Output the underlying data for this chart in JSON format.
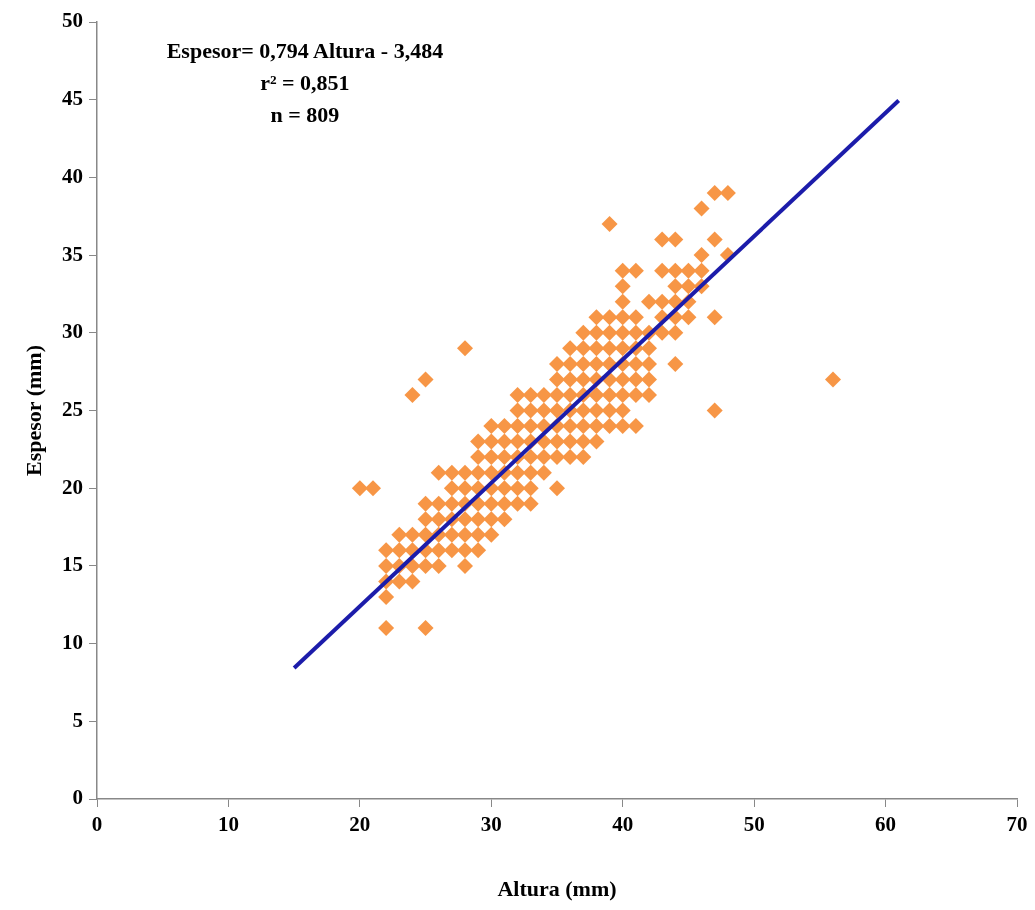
{
  "chart_data": {
    "type": "scatter",
    "xlabel": "Altura (mm)",
    "ylabel": "Espesor (mm)",
    "annotations": [
      "Espesor= 0,794 Altura - 3,484",
      "r² = 0,851",
      "n = 809"
    ],
    "xlim": [
      0,
      70
    ],
    "xticks": [
      0,
      10,
      20,
      30,
      40,
      50,
      60,
      70
    ],
    "ylim": [
      0,
      50
    ],
    "yticks": [
      0,
      5,
      10,
      15,
      20,
      25,
      30,
      35,
      40,
      45,
      50
    ],
    "grid": false,
    "legend": false,
    "marker": "diamond",
    "series": [
      {
        "color": "#f79646",
        "x": [
          20,
          21,
          22,
          22,
          22,
          22,
          22,
          23,
          23,
          23,
          23,
          24,
          24,
          24,
          24,
          24,
          25,
          25,
          25,
          25,
          25,
          25,
          25,
          26,
          26,
          26,
          26,
          26,
          26,
          27,
          27,
          27,
          27,
          27,
          27,
          28,
          28,
          28,
          28,
          28,
          28,
          28,
          28,
          29,
          29,
          29,
          29,
          29,
          29,
          29,
          29,
          30,
          30,
          30,
          30,
          30,
          30,
          30,
          30,
          31,
          31,
          31,
          31,
          31,
          31,
          31,
          32,
          32,
          32,
          32,
          32,
          32,
          32,
          32,
          33,
          33,
          33,
          33,
          33,
          33,
          33,
          33,
          34,
          34,
          34,
          34,
          34,
          34,
          35,
          35,
          35,
          35,
          35,
          35,
          35,
          35,
          36,
          36,
          36,
          36,
          36,
          36,
          36,
          36,
          37,
          37,
          37,
          37,
          37,
          37,
          37,
          37,
          37,
          38,
          38,
          38,
          38,
          38,
          38,
          38,
          38,
          38,
          39,
          39,
          39,
          39,
          39,
          39,
          39,
          39,
          39,
          40,
          40,
          40,
          40,
          40,
          40,
          40,
          40,
          40,
          40,
          40,
          41,
          41,
          41,
          41,
          41,
          41,
          41,
          41,
          42,
          42,
          42,
          42,
          42,
          42,
          43,
          43,
          43,
          43,
          43,
          44,
          44,
          44,
          44,
          44,
          44,
          44,
          45,
          45,
          45,
          45,
          46,
          46,
          46,
          46,
          47,
          47,
          47,
          47,
          48,
          48,
          56
        ],
        "values": [
          20,
          20,
          11,
          13,
          14,
          15,
          16,
          14,
          15,
          16,
          17,
          14,
          15,
          16,
          17,
          26,
          11,
          15,
          16,
          17,
          18,
          19,
          27,
          15,
          16,
          17,
          18,
          19,
          21,
          16,
          17,
          18,
          19,
          20,
          21,
          15,
          16,
          17,
          18,
          19,
          20,
          21,
          29,
          16,
          17,
          18,
          19,
          20,
          21,
          22,
          23,
          17,
          18,
          19,
          20,
          21,
          22,
          23,
          24,
          18,
          19,
          20,
          21,
          22,
          23,
          24,
          19,
          20,
          21,
          22,
          23,
          24,
          25,
          26,
          19,
          20,
          21,
          22,
          23,
          24,
          25,
          26,
          21,
          22,
          23,
          24,
          25,
          26,
          20,
          22,
          23,
          24,
          25,
          26,
          27,
          28,
          22,
          23,
          24,
          25,
          26,
          27,
          28,
          29,
          22,
          23,
          24,
          25,
          26,
          27,
          28,
          29,
          30,
          23,
          24,
          25,
          26,
          27,
          28,
          29,
          30,
          31,
          24,
          25,
          26,
          27,
          28,
          29,
          30,
          31,
          37,
          24,
          25,
          26,
          27,
          28,
          29,
          30,
          31,
          32,
          33,
          34,
          24,
          26,
          27,
          28,
          29,
          30,
          31,
          34,
          26,
          27,
          28,
          29,
          30,
          32,
          30,
          31,
          32,
          34,
          36,
          28,
          30,
          31,
          32,
          33,
          34,
          36,
          31,
          32,
          33,
          34,
          33,
          34,
          35,
          38,
          25,
          31,
          36,
          39,
          35,
          39,
          27
        ]
      },
      {
        "type": "line",
        "color": "#1c1caa",
        "marker": "none",
        "line_style": "solid",
        "x": [
          15,
          61
        ],
        "values": [
          8.43,
          44.95
        ]
      }
    ]
  }
}
